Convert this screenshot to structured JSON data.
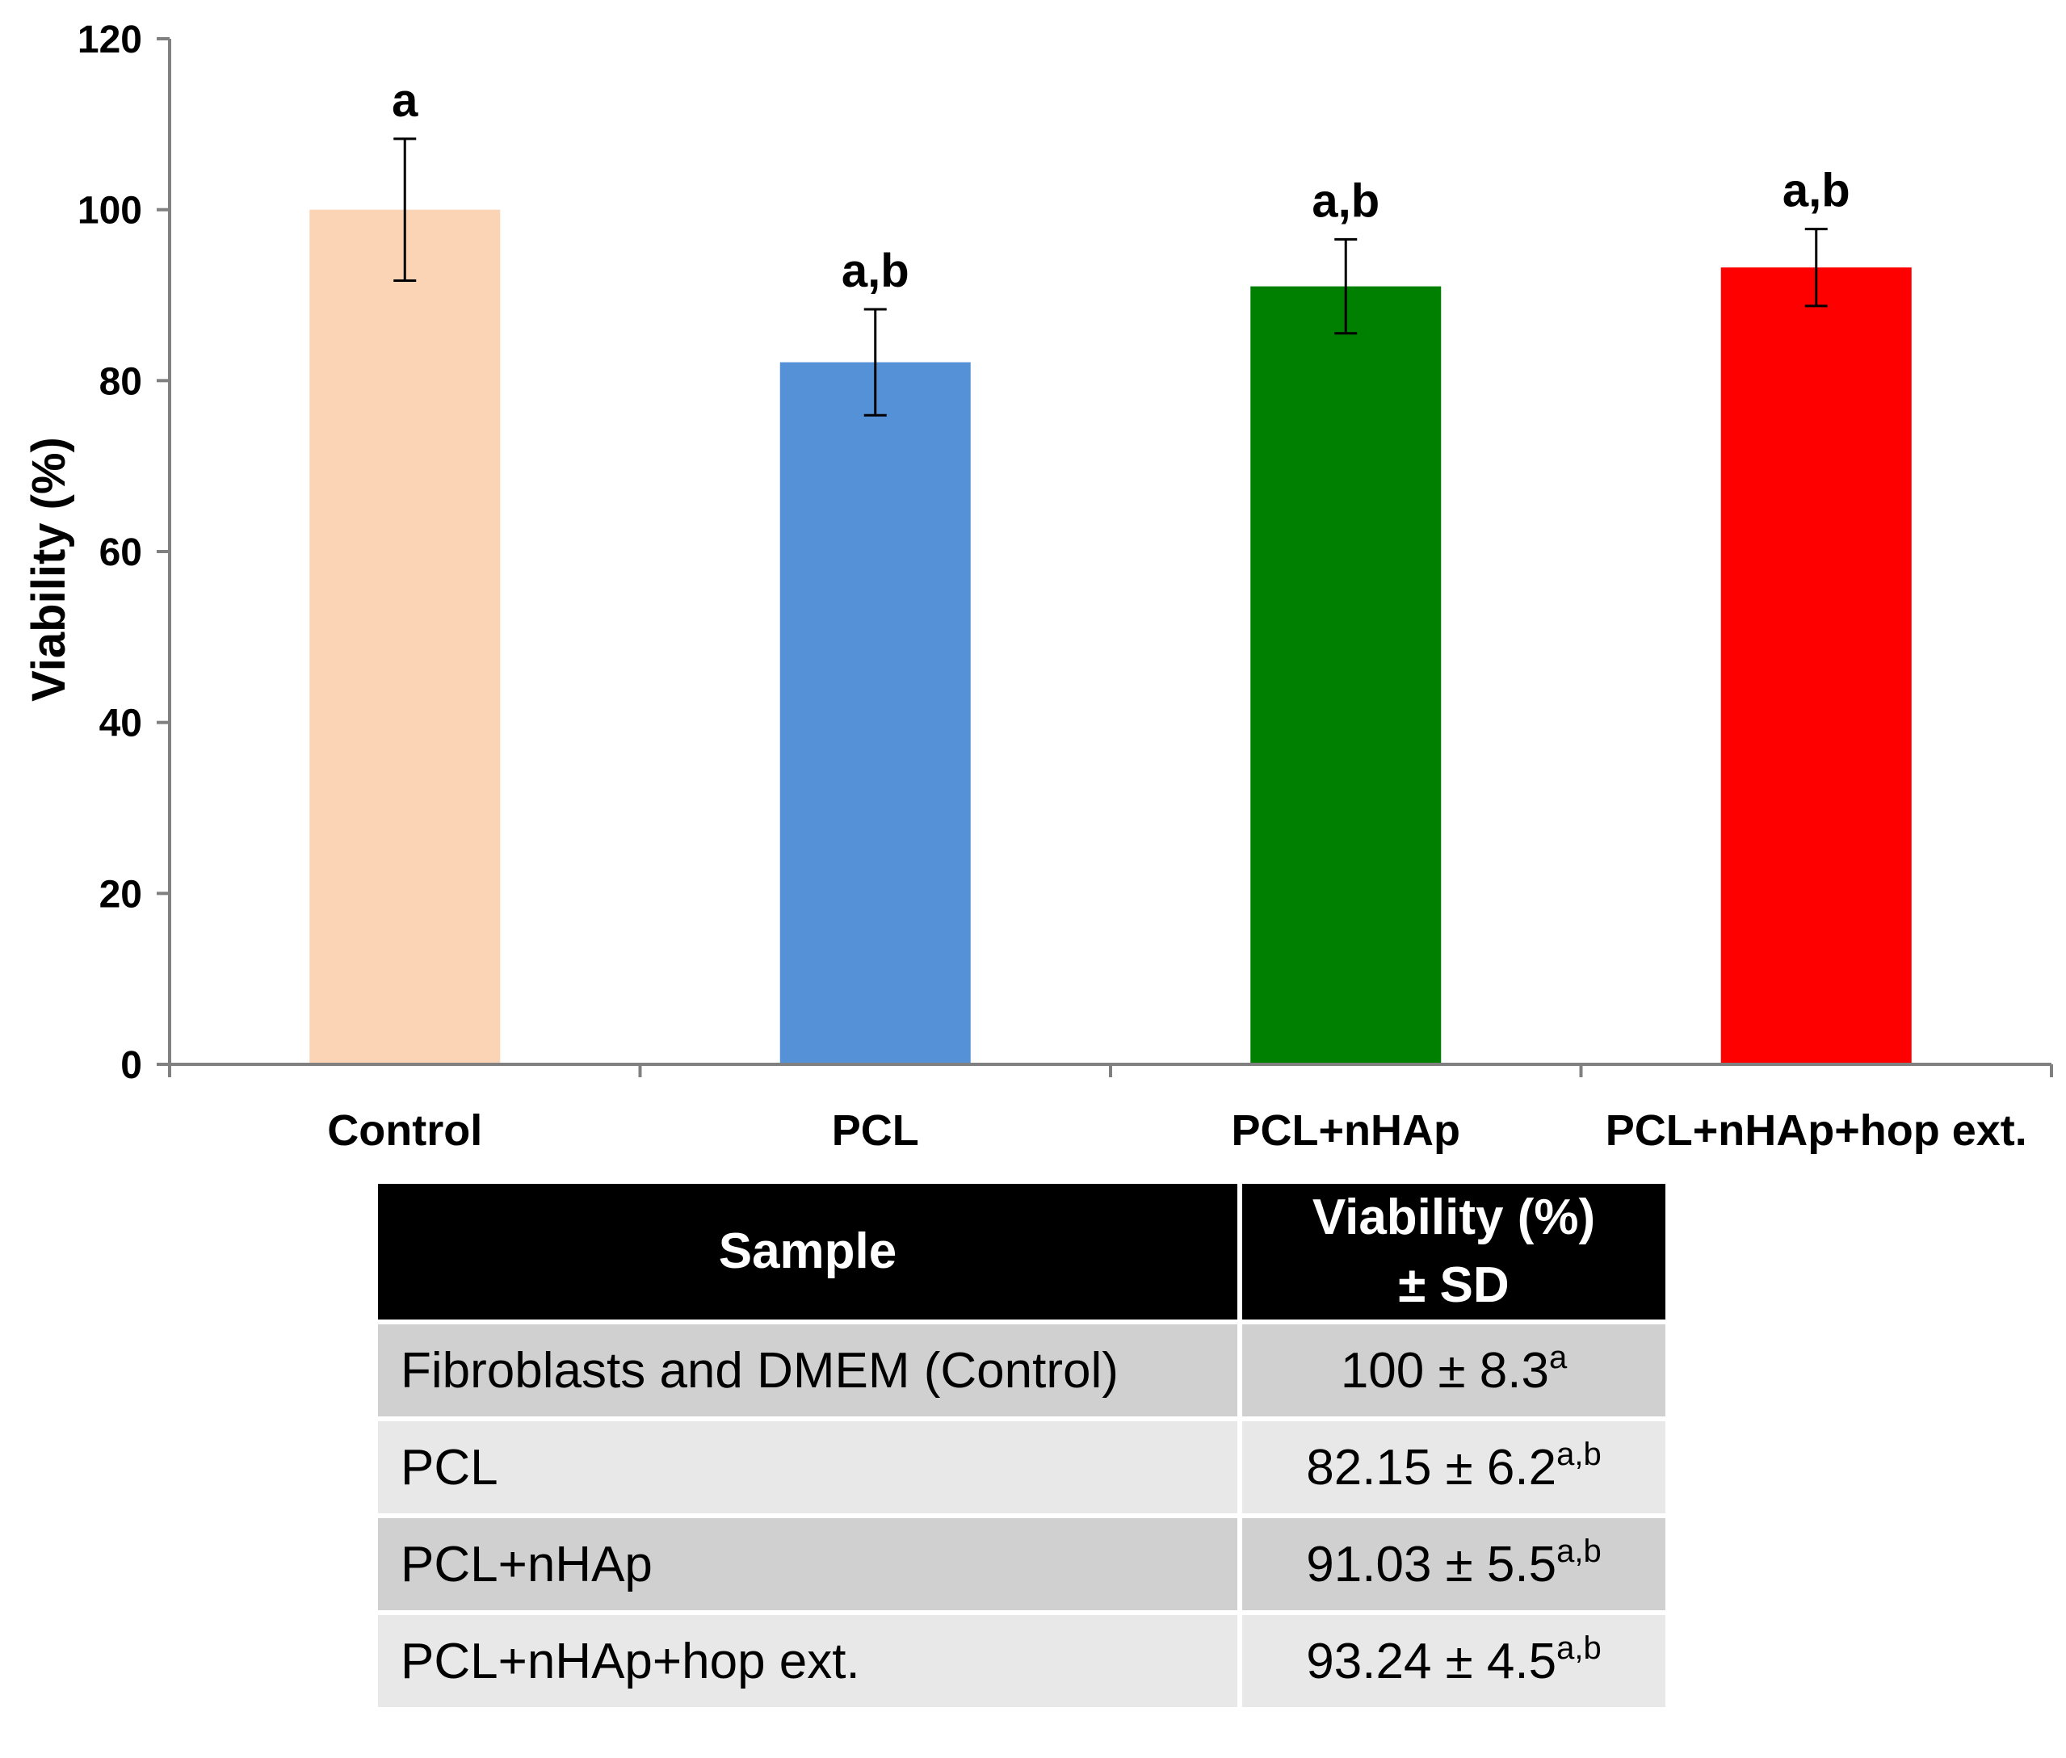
{
  "chart_data": {
    "type": "bar",
    "ylabel": "Viability (%)",
    "xlabel": "",
    "ylim": [
      0,
      120
    ],
    "yticks": [
      0,
      20,
      40,
      60,
      80,
      100,
      120
    ],
    "grid": false,
    "categories": [
      "Control",
      "PCL",
      "PCL+nHAp",
      "PCL+nHAp+hop ext."
    ],
    "values": [
      100,
      82.15,
      91.03,
      93.24
    ],
    "errors": [
      8.3,
      6.2,
      5.5,
      4.5
    ],
    "significance_labels": [
      "a",
      "a,b",
      "a,b",
      "a,b"
    ],
    "colors": [
      "#fad4b4",
      "#5591d6",
      "#008000",
      "#ff0000"
    ]
  },
  "table": {
    "headers": {
      "sample": "Sample",
      "viability_line1": "Viability (%)",
      "viability_line2": "± SD"
    },
    "rows": [
      {
        "sample": "Fibroblasts and DMEM (Control)",
        "value": "100 ± 8.3",
        "sup": "a"
      },
      {
        "sample": "PCL",
        "value": "82.15 ± 6.2",
        "sup": "a,b"
      },
      {
        "sample": "PCL+nHAp",
        "value": "91.03 ± 5.5",
        "sup": "a,b"
      },
      {
        "sample": "PCL+nHAp+hop ext.",
        "value": "93.24 ± 4.5",
        "sup": "a,b"
      }
    ]
  }
}
